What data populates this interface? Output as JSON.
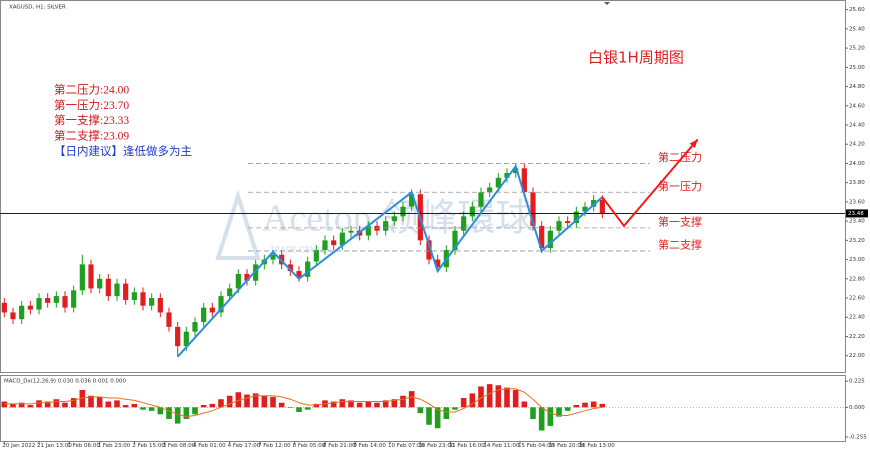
{
  "chart_data": [
    {
      "type": "candlestick",
      "title": "XAGUSD, H1: SILVER",
      "heading": "白银1H周期图",
      "watermark": "Acetop 领峰環球",
      "watermark_sub": "TRADE CENTER",
      "up_color": "#1f9e1f",
      "down_color": "#e01e1e",
      "open": [
        22.55,
        22.45,
        22.38,
        22.52,
        22.48,
        22.6,
        22.55,
        22.62,
        22.5,
        22.68,
        22.95,
        22.7,
        22.8,
        22.62,
        22.75,
        22.58,
        22.66,
        22.52,
        22.6,
        22.45,
        22.3,
        22.1,
        22.25,
        22.35,
        22.5,
        22.45,
        22.62,
        22.7,
        22.85,
        22.78,
        22.95,
        23.0,
        23.05,
        22.95,
        22.88,
        22.82,
        22.98,
        23.1,
        23.2,
        23.15,
        23.28,
        23.3,
        23.25,
        23.35,
        23.3,
        23.4,
        23.45,
        23.55,
        23.68,
        23.2,
        23.0,
        22.92,
        23.1,
        23.3,
        23.45,
        23.55,
        23.7,
        23.75,
        23.85,
        23.9,
        23.95,
        23.7,
        23.35,
        23.12,
        23.3,
        23.4,
        23.38,
        23.5,
        23.55,
        23.62
      ],
      "high": [
        22.6,
        22.5,
        22.57,
        22.57,
        22.65,
        22.65,
        22.67,
        22.67,
        22.73,
        23.05,
        23.0,
        22.85,
        22.85,
        22.8,
        22.8,
        22.71,
        22.71,
        22.65,
        22.65,
        22.5,
        22.35,
        22.3,
        22.4,
        22.55,
        22.55,
        22.67,
        22.75,
        22.9,
        22.9,
        23.0,
        23.05,
        23.1,
        23.1,
        23.0,
        22.93,
        23.03,
        23.15,
        23.25,
        23.25,
        23.33,
        23.35,
        23.35,
        23.4,
        23.4,
        23.45,
        23.5,
        23.6,
        23.73,
        23.73,
        23.25,
        23.05,
        23.15,
        23.35,
        23.5,
        23.6,
        23.75,
        23.8,
        23.9,
        23.95,
        24.0,
        24.0,
        23.75,
        23.4,
        23.35,
        23.45,
        23.45,
        23.55,
        23.6,
        23.67,
        23.67
      ],
      "low": [
        22.4,
        22.33,
        22.33,
        22.43,
        22.43,
        22.5,
        22.5,
        22.45,
        22.45,
        22.63,
        22.65,
        22.65,
        22.57,
        22.57,
        22.53,
        22.53,
        22.47,
        22.47,
        22.4,
        22.25,
        21.99,
        22.05,
        22.2,
        22.3,
        22.4,
        22.4,
        22.57,
        22.65,
        22.73,
        22.73,
        22.9,
        22.95,
        22.9,
        22.83,
        22.77,
        22.77,
        22.93,
        23.05,
        23.1,
        23.1,
        23.23,
        23.2,
        23.2,
        23.25,
        23.25,
        23.35,
        23.4,
        23.5,
        23.15,
        22.95,
        22.87,
        22.87,
        23.05,
        23.25,
        23.4,
        23.5,
        23.65,
        23.7,
        23.8,
        23.85,
        23.65,
        23.3,
        23.07,
        23.07,
        23.25,
        23.33,
        23.33,
        23.45,
        23.5,
        23.43
      ],
      "close": [
        22.45,
        22.38,
        22.52,
        22.48,
        22.6,
        22.55,
        22.62,
        22.5,
        22.68,
        22.95,
        22.7,
        22.8,
        22.62,
        22.75,
        22.58,
        22.66,
        22.52,
        22.6,
        22.45,
        22.3,
        22.1,
        22.25,
        22.35,
        22.5,
        22.45,
        22.62,
        22.7,
        22.85,
        22.78,
        22.95,
        23.0,
        23.05,
        22.95,
        22.88,
        22.82,
        22.98,
        23.1,
        23.2,
        23.15,
        23.28,
        23.3,
        23.25,
        23.35,
        23.3,
        23.4,
        23.45,
        23.55,
        23.68,
        23.2,
        23.0,
        22.92,
        23.1,
        23.3,
        23.45,
        23.55,
        23.7,
        23.75,
        23.85,
        23.9,
        23.95,
        23.7,
        23.35,
        23.12,
        23.3,
        23.4,
        23.38,
        23.5,
        23.55,
        23.62,
        23.48
      ],
      "xlim": [
        -0.5,
        97
      ],
      "ylim": [
        21.82,
        25.69
      ],
      "yticks": [
        {
          "value": 25.6,
          "label": "25.60"
        },
        {
          "value": 25.4,
          "label": "25.40"
        },
        {
          "value": 25.2,
          "label": "25.20"
        },
        {
          "value": 25.0,
          "label": "25.00"
        },
        {
          "value": 24.8,
          "label": "24.80"
        },
        {
          "value": 24.6,
          "label": "24.60"
        },
        {
          "value": 24.4,
          "label": "24.40"
        },
        {
          "value": 24.2,
          "label": "24.20"
        },
        {
          "value": 24.0,
          "label": "24.00"
        },
        {
          "value": 23.8,
          "label": "23.80"
        },
        {
          "value": 23.6,
          "label": "23.60"
        },
        {
          "value": 23.4,
          "label": "23.40"
        },
        {
          "value": 23.2,
          "label": "23.20"
        },
        {
          "value": 23.0,
          "label": "23.00"
        },
        {
          "value": 22.8,
          "label": "22.80"
        },
        {
          "value": 22.6,
          "label": "22.60"
        },
        {
          "value": 22.4,
          "label": "22.40"
        },
        {
          "value": 22.2,
          "label": "22.20"
        },
        {
          "value": 22.0,
          "label": "22.00"
        }
      ],
      "current": {
        "value": 23.48,
        "label": "23.48"
      },
      "zigzag": {
        "color": "#2a8fe0",
        "x": [
          20,
          31,
          34,
          47,
          50,
          59,
          62,
          69
        ],
        "y": [
          21.99,
          23.08,
          22.8,
          23.7,
          22.88,
          23.97,
          23.09,
          23.65
        ]
      },
      "forecast": {
        "color": "#ee1c1c",
        "x": [
          69,
          71.5,
          80
        ],
        "y": [
          23.65,
          23.35,
          24.25
        ]
      },
      "levels": [
        {
          "value": 24.0,
          "label": "第二压力"
        },
        {
          "value": 23.7,
          "label": "第一压力"
        },
        {
          "value": 23.33,
          "label": "第一支撑"
        },
        {
          "value": 23.09,
          "label": "第二支撑"
        }
      ],
      "advice": [
        "第二压力:24.00",
        "第一压力:23.70",
        "第一支撑:23.33",
        "第二支撑:23.09",
        "【日内建议】逢低做多为主"
      ]
    },
    {
      "type": "bar",
      "title": "MACD_Dx(12,26,9) 0.030 0.036 0.001 0.000",
      "up_color": "#e01e1e",
      "down_color": "#1f9e1f",
      "values": [
        0.05,
        0.03,
        0.04,
        0.02,
        0.06,
        0.05,
        0.07,
        0.04,
        0.08,
        0.15,
        0.1,
        0.09,
        0.05,
        0.06,
        0.02,
        0.03,
        -0.02,
        -0.03,
        -0.06,
        -0.1,
        -0.14,
        -0.1,
        -0.06,
        0.02,
        0.03,
        0.07,
        0.1,
        0.13,
        0.11,
        0.12,
        0.1,
        0.09,
        0.04,
        0.0,
        -0.04,
        -0.02,
        0.03,
        0.06,
        0.05,
        0.07,
        0.06,
        0.04,
        0.05,
        0.04,
        0.06,
        0.07,
        0.1,
        0.14,
        -0.05,
        -0.15,
        -0.18,
        -0.1,
        -0.02,
        0.08,
        0.12,
        0.18,
        0.2,
        0.19,
        0.17,
        0.15,
        0.05,
        -0.1,
        -0.2,
        -0.16,
        -0.08,
        -0.03,
        0.02,
        0.04,
        0.05,
        0.03
      ],
      "signal": {
        "color": "#e8701a",
        "values": [
          0.03,
          0.03,
          0.03,
          0.03,
          0.04,
          0.04,
          0.05,
          0.05,
          0.06,
          0.08,
          0.09,
          0.09,
          0.08,
          0.08,
          0.07,
          0.06,
          0.04,
          0.02,
          0.0,
          -0.03,
          -0.06,
          -0.08,
          -0.07,
          -0.05,
          -0.03,
          0.0,
          0.03,
          0.06,
          0.08,
          0.1,
          0.1,
          0.1,
          0.09,
          0.07,
          0.04,
          0.02,
          0.02,
          0.03,
          0.04,
          0.05,
          0.05,
          0.05,
          0.05,
          0.05,
          0.05,
          0.06,
          0.07,
          0.09,
          0.07,
          0.03,
          -0.02,
          -0.04,
          -0.04,
          -0.01,
          0.03,
          0.08,
          0.12,
          0.15,
          0.16,
          0.16,
          0.13,
          0.07,
          0.0,
          -0.05,
          -0.07,
          -0.07,
          -0.05,
          -0.03,
          -0.01,
          0.0
        ]
      },
      "xlim": [
        -0.5,
        97
      ],
      "ylim": [
        -0.29,
        0.27
      ],
      "yticks": [
        0.225,
        {
          "value": 0,
          "label": "0.000"
        },
        -0.255
      ],
      "xticks": [
        {
          "value": 0,
          "label": "20 Jan 2022"
        },
        {
          "value": 4,
          "label": "21 Jan 13:00"
        },
        {
          "value": 7.5,
          "label": "1 Feb 06:00"
        },
        {
          "value": 11,
          "label": "1 Feb 23:00"
        },
        {
          "value": 15,
          "label": "2 Feb 15:00"
        },
        {
          "value": 18.5,
          "label": "3 Feb 08:00"
        },
        {
          "value": 22,
          "label": "4 Feb 01:00"
        },
        {
          "value": 26,
          "label": "4 Feb 17:00"
        },
        {
          "value": 29.5,
          "label": "7 Feb 12:00"
        },
        {
          "value": 33.5,
          "label": "8 Feb 05:00"
        },
        {
          "value": 37,
          "label": "8 Feb 21:00"
        },
        {
          "value": 40.5,
          "label": "9 Feb 14:00"
        },
        {
          "value": 44.5,
          "label": "10 Feb 07:00"
        },
        {
          "value": 48,
          "label": "10 Feb 23:00"
        },
        {
          "value": 51.5,
          "label": "11 Feb 16:00"
        },
        {
          "value": 55.5,
          "label": "14 Feb 11:00"
        },
        {
          "value": 59.5,
          "label": "15 Feb 04:00"
        },
        {
          "value": 63,
          "label": "15 Feb 20:00"
        },
        {
          "value": 66.5,
          "label": "16 Feb 13:00"
        }
      ]
    }
  ]
}
